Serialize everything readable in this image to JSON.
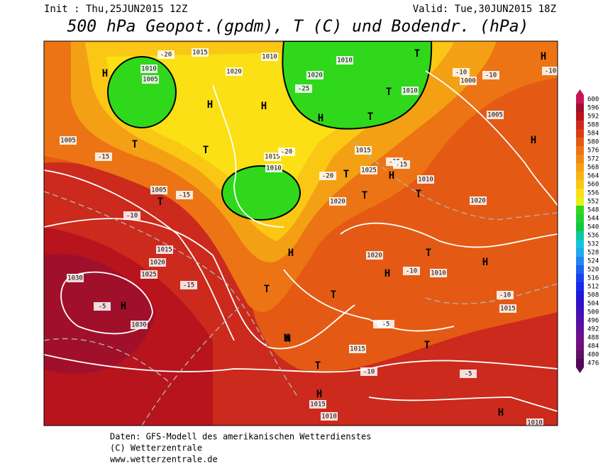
{
  "header": {
    "init": "Init : Thu,25JUN2015 12Z",
    "valid": "Valid: Tue,30JUN2015 18Z",
    "title": "500 hPa Geopot.(gpdm), T (C) und Bodendr. (hPa)"
  },
  "colorbar": {
    "levels": [
      600,
      596,
      592,
      588,
      584,
      580,
      576,
      572,
      568,
      564,
      560,
      556,
      552,
      548,
      544,
      540,
      536,
      532,
      528,
      524,
      520,
      516,
      512,
      508,
      504,
      500,
      496,
      492,
      488,
      484,
      480,
      476
    ],
    "colors": [
      "#c8145a",
      "#a0102a",
      "#b8141e",
      "#cc2a1c",
      "#dc3c18",
      "#e45a14",
      "#ec7414",
      "#f08a14",
      "#f4a014",
      "#f8b414",
      "#fac814",
      "#fae014",
      "#e8f014",
      "#30d81c",
      "#20d030",
      "#10c840",
      "#10c8a0",
      "#10c8d8",
      "#20a8f0",
      "#2088f0",
      "#1c60f0",
      "#1840f0",
      "#1828e8",
      "#2018d8",
      "#3010c8",
      "#4010b8",
      "#5010a8",
      "#601098",
      "#701088",
      "#701078",
      "#601068",
      "#500858"
    ]
  },
  "map_labels": [
    "1015",
    "1010",
    "1005",
    "H",
    "-20",
    "1020",
    "1010",
    "H",
    "T",
    "1020",
    "-25",
    "H",
    "1010",
    "T",
    "H",
    "T",
    "1010",
    "1000",
    "-10",
    "-10",
    "H",
    "-10",
    "1005",
    "H",
    "1015",
    "-20",
    "T",
    "1010",
    "-15",
    "1005",
    "T",
    "-15",
    "T",
    "1015",
    "-15",
    "1010",
    "1025",
    "-20",
    "1020",
    "T",
    "H",
    "T",
    "1020",
    "1005",
    "T",
    "-15",
    "-10",
    "1030",
    "H",
    "-5",
    "1030",
    "1015",
    "H",
    "1025",
    "-15",
    "1020",
    "H",
    "T",
    "1020",
    "-10",
    "T",
    "H",
    "T",
    "1015",
    "-10",
    "H",
    "1010",
    "-5",
    "1015",
    "T",
    "H",
    "1015",
    "-5",
    "-10",
    "1010",
    "H",
    "1010",
    "-5",
    "T",
    "H"
  ],
  "footer": {
    "line1": "Daten: GFS-Modell des amerikanischen Wetterdienstes",
    "line2": "(C) Wetterzentrale",
    "line3": "www.wetterzentrale.de"
  }
}
